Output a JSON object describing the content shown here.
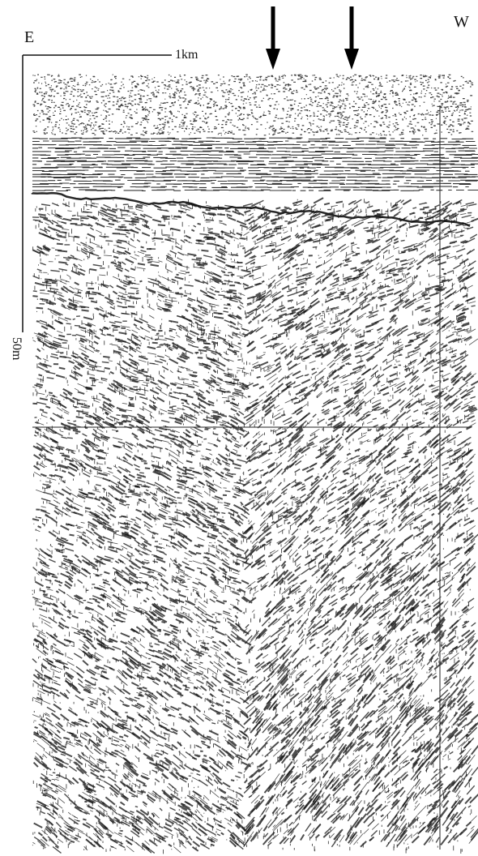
{
  "labels": {
    "east": "E",
    "west": "W",
    "horizontal_scale": "1km",
    "vertical_scale": "50m"
  }
}
